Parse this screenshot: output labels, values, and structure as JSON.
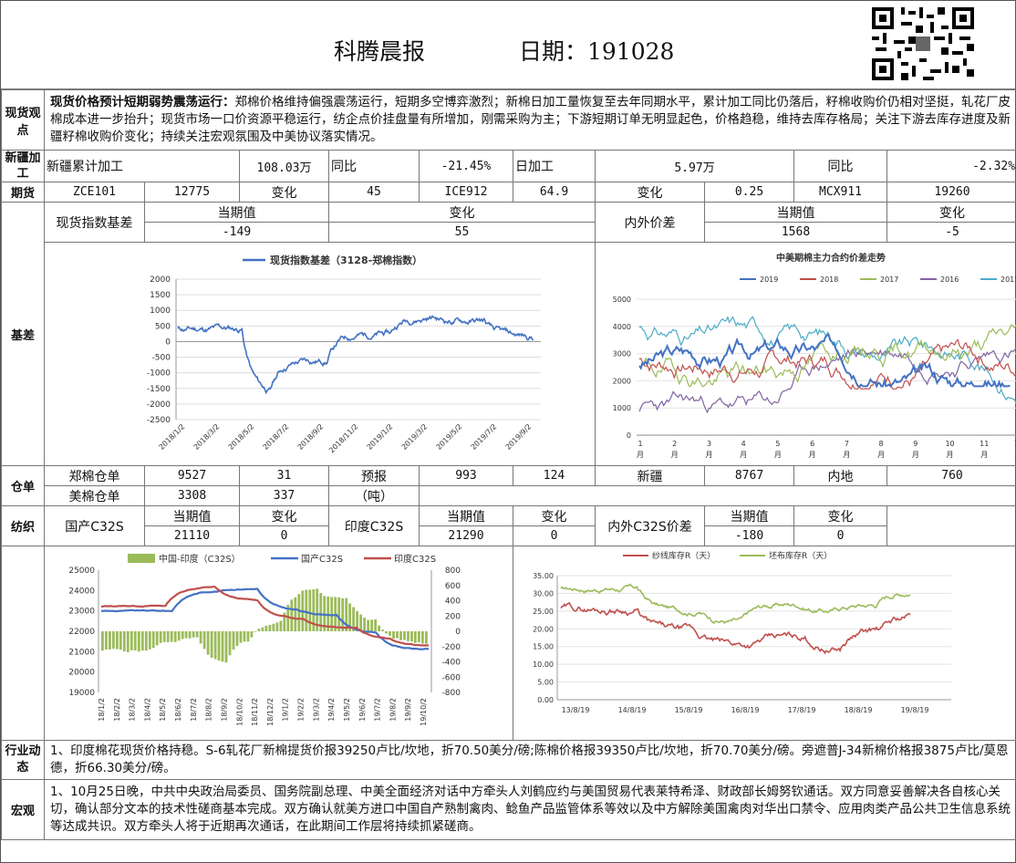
{
  "header": {
    "title": "科腾晨报",
    "date_label": "日期：191028"
  },
  "spot": {
    "label": "现货观点",
    "bold": "现货价格预计短期弱势震荡运行：",
    "text": "郑棉价格维持偏强震荡运行，短期多空博弈激烈；新棉日加工量恢复至去年同期水平，累计加工同比仍落后，籽棉收购价仍相对坚挺，轧花厂皮棉成本进一步抬升；现货市场一口价资源平稳运行，纺企点价挂盘量有所增加，刚需采购为主；下游短期订单无明显起色，价格趋稳，维持去库存格局；关注下游去库存进度及新疆籽棉收购价变化；持续关注宏观氛围及中美协议落实情况。"
  },
  "xinjiang": {
    "label": "新疆加工",
    "cum_label": "新疆累计加工",
    "cum": "108.03万",
    "yoy_label": "同比",
    "cum_yoy": "-21.45%",
    "daily_label": "日加工",
    "daily": "5.97万",
    "yoy2_label": "同比",
    "daily_yoy": "-2.32%"
  },
  "futures": {
    "label": "期货",
    "c1": "ZCE101",
    "v1": "12775",
    "chg_label": "变化",
    "chg1": "45",
    "c2": "ICE912",
    "v2": "64.9",
    "chg2_label": "变化",
    "chg2": "0.25",
    "c3": "MCX911",
    "v3": "19260"
  },
  "basis": {
    "label": "基差",
    "name1": "现货指数基差",
    "cur_label": "当期值",
    "chg_label": "变化",
    "cur1": "-149",
    "chg1": "55",
    "name2": "内外价差",
    "cur_label2": "当期值",
    "chg_label2": "变化",
    "cur2": "1568",
    "chg2": "-5"
  },
  "warehouse": {
    "label": "仓单",
    "zc_label": "郑棉仓单",
    "zc_val": "9527",
    "zc_chg": "31",
    "forecast_label": "预报",
    "unit_label": "（吨）",
    "forecast_val": "993",
    "forecast_chg": "124",
    "xj_label": "新疆",
    "xj_val": "8767",
    "nd_label": "内地",
    "nd_val": "760",
    "us_label": "美棉仓单",
    "us_val": "3308",
    "us_chg": "337"
  },
  "yarn": {
    "label": "纺织",
    "cn_label": "国产C32S",
    "cur_label": "当期值",
    "chg_label": "变化",
    "cn_cur": "21110",
    "cn_chg": "0",
    "in_label": "印度C32S",
    "in_cur_label": "当期值",
    "in_chg_label": "变化",
    "in_cur": "21290",
    "in_chg": "0",
    "diff_label": "内外C32S价差",
    "diff_cur_label": "当期值",
    "diff_chg_label": "变化",
    "diff_cur": "-180",
    "diff_chg": "0"
  },
  "industry": {
    "label": "行业动态",
    "text": "1、印度棉花现货价格持稳。S-6轧花厂新棉提货价报39250卢比/坎地，折70.50美分/磅;陈棉价格报39350卢比/坎地，折70.70美分/磅。旁遮普J-34新棉价格报3875卢比/莫恩德，折66.30美分/磅。"
  },
  "macro": {
    "label": "宏观",
    "text": "1、10月25日晚，中共中央政治局委员、国务院副总理、中美全面经济对话中方牵头人刘鹤应约与美国贸易代表莱特希泽、财政部长姆努钦通话。双方同意妥善解决各自核心关切，确认部分文本的技术性磋商基本完成。双方确认就美方进口中国自产熟制禽肉、鲶鱼产品监管体系等效以及中方解除美国禽肉对华出口禁令、应用肉类产品公共卫生信息系统等达成共识。双方牵头人将于近期再次通话，在此期间工作层将持续抓紧磋商。"
  },
  "chart_data": [
    {
      "type": "line",
      "title": "",
      "series": [
        {
          "name": "现货指数基差（3128-郑棉指数）",
          "color": "#4472C4"
        }
      ],
      "x": [
        "2018/1/2",
        "2018/3/2",
        "2018/5/2",
        "2018/7/2",
        "2018/9/2",
        "2018/11/2",
        "2019/1/2",
        "2019/3/2",
        "2019/5/2",
        "2019/7/2",
        "2019/9/2"
      ],
      "ylim": [
        -2500,
        2000
      ],
      "yticks": [
        "2000",
        "1500",
        "1000",
        "500",
        "0",
        "-500",
        "-1000",
        "-1500",
        "-2000",
        "-2500"
      ]
    },
    {
      "type": "line",
      "title": "中美期棉主力合约价差走势",
      "series": [
        {
          "name": "2019",
          "color": "#4472C4"
        },
        {
          "name": "2018",
          "color": "#C0504D"
        },
        {
          "name": "2017",
          "color": "#9BBB59"
        },
        {
          "name": "2016",
          "color": "#8064A2"
        },
        {
          "name": "2015",
          "color": "#4BACC6"
        }
      ],
      "x": [
        "1月",
        "2月",
        "3月",
        "4月",
        "5月",
        "6月",
        "7月",
        "8月",
        "9月",
        "10月",
        "11月",
        "12月"
      ],
      "x_top": [
        "1",
        "2",
        "3",
        "4",
        "5",
        "6",
        "7",
        "8",
        "9",
        "10",
        "11",
        "12"
      ],
      "x_bottom": [
        "月",
        "月",
        "月",
        "月",
        "月",
        "月",
        "月",
        "月",
        "月",
        "月",
        "月",
        "月"
      ],
      "ylim": [
        0,
        5000
      ],
      "yticks": [
        "5000",
        "4000",
        "3000",
        "2000",
        "1000",
        "0"
      ]
    },
    {
      "type": "bar",
      "title": "",
      "series": [
        {
          "name": "中国-印度（C32S）",
          "color": "#9BBB59"
        },
        {
          "name": "国产C32S",
          "color": "#4472C4"
        },
        {
          "name": "印度C32S",
          "color": "#C0504D"
        }
      ],
      "yticks_left": [
        "25000",
        "24000",
        "23000",
        "22000",
        "21000",
        "20000",
        "19000"
      ],
      "yticks_right": [
        "800",
        "600",
        "400",
        "200",
        "0",
        "-200",
        "-400",
        "-600",
        "-800"
      ],
      "x": [
        "18/1/2",
        "18/2/2",
        "18/3/2",
        "18/4/2",
        "18/5/2",
        "18/6/2",
        "18/7/2",
        "18/8/2",
        "18/9/2",
        "18/10/2",
        "18/11/2",
        "18/12/2",
        "19/1/2",
        "19/2/2",
        "19/3/2",
        "19/4/2",
        "19/5/2",
        "19/6/2",
        "19/7/2",
        "19/8/2",
        "19/9/2",
        "19/10/2"
      ]
    },
    {
      "type": "line",
      "title": "",
      "series": [
        {
          "name": "纱线库存R（天）",
          "color": "#C0504D"
        },
        {
          "name": "坯布库存R（天）",
          "color": "#9BBB59"
        }
      ],
      "yticks": [
        "35.00",
        "30.00",
        "25.00",
        "20.00",
        "15.00",
        "10.00",
        "5.00",
        "0.00"
      ],
      "x": [
        "13/8/19",
        "14/8/19",
        "15/8/19",
        "16/8/19",
        "17/8/19",
        "18/8/19",
        "19/8/19"
      ]
    }
  ]
}
